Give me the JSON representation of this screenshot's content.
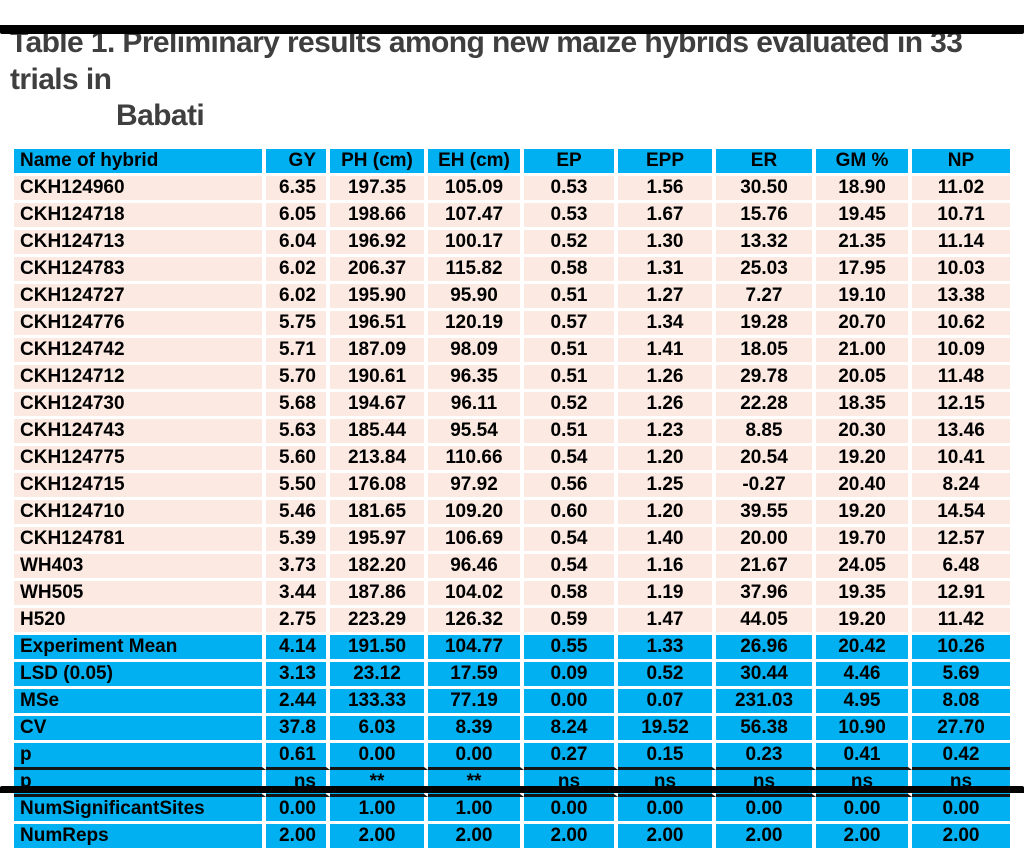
{
  "page": {
    "title_line1": "Table 1. Preliminary results among new maize hybrids evaluated in 33 trials in",
    "title_line2": "Babati"
  },
  "colors": {
    "header_bg": "#00b0f0",
    "data_row_bg": "#fbe9e2",
    "title_text": "#3f3f3f",
    "cell_text": "#000000",
    "grid_lines": "#ffffff",
    "dark_divider": "#151515"
  },
  "table": {
    "columns": [
      "Name of hybrid",
      "GY",
      "PH (cm)",
      "EH (cm)",
      "EP",
      "EPP",
      "ER",
      "GM %",
      "NP"
    ],
    "hybrid_rows": [
      [
        "CKH124960",
        "6.35",
        "197.35",
        "105.09",
        "0.53",
        "1.56",
        "30.50",
        "18.90",
        "11.02"
      ],
      [
        "CKH124718",
        "6.05",
        "198.66",
        "107.47",
        "0.53",
        "1.67",
        "15.76",
        "19.45",
        "10.71"
      ],
      [
        "CKH124713",
        "6.04",
        "196.92",
        "100.17",
        "0.52",
        "1.30",
        "13.32",
        "21.35",
        "11.14"
      ],
      [
        "CKH124783",
        "6.02",
        "206.37",
        "115.82",
        "0.58",
        "1.31",
        "25.03",
        "17.95",
        "10.03"
      ],
      [
        "CKH124727",
        "6.02",
        "195.90",
        "95.90",
        "0.51",
        "1.27",
        "7.27",
        "19.10",
        "13.38"
      ],
      [
        "CKH124776",
        "5.75",
        "196.51",
        "120.19",
        "0.57",
        "1.34",
        "19.28",
        "20.70",
        "10.62"
      ],
      [
        "CKH124742",
        "5.71",
        "187.09",
        "98.09",
        "0.51",
        "1.41",
        "18.05",
        "21.00",
        "10.09"
      ],
      [
        "CKH124712",
        "5.70",
        "190.61",
        "96.35",
        "0.51",
        "1.26",
        "29.78",
        "20.05",
        "11.48"
      ],
      [
        "CKH124730",
        "5.68",
        "194.67",
        "96.11",
        "0.52",
        "1.26",
        "22.28",
        "18.35",
        "12.15"
      ],
      [
        "CKH124743",
        "5.63",
        "185.44",
        "95.54",
        "0.51",
        "1.23",
        "8.85",
        "20.30",
        "13.46"
      ],
      [
        "CKH124775",
        "5.60",
        "213.84",
        "110.66",
        "0.54",
        "1.20",
        "20.54",
        "19.20",
        "10.41"
      ],
      [
        "CKH124715",
        "5.50",
        "176.08",
        "97.92",
        "0.56",
        "1.25",
        "-0.27",
        "20.40",
        "8.24"
      ],
      [
        "CKH124710",
        "5.46",
        "181.65",
        "109.20",
        "0.60",
        "1.20",
        "39.55",
        "19.20",
        "14.54"
      ],
      [
        "CKH124781",
        "5.39",
        "195.97",
        "106.69",
        "0.54",
        "1.40",
        "20.00",
        "19.70",
        "12.57"
      ],
      [
        "WH403",
        "3.73",
        "182.20",
        "96.46",
        "0.54",
        "1.16",
        "21.67",
        "24.05",
        "6.48"
      ],
      [
        "WH505",
        "3.44",
        "187.86",
        "104.02",
        "0.58",
        "1.19",
        "37.96",
        "19.35",
        "12.91"
      ],
      [
        "H520",
        "2.75",
        "223.29",
        "126.32",
        "0.59",
        "1.47",
        "44.05",
        "19.20",
        "11.42"
      ]
    ],
    "summary_rows": [
      [
        "Experiment Mean",
        "4.14",
        "191.50",
        "104.77",
        "0.55",
        "1.33",
        "26.96",
        "20.42",
        "10.26"
      ],
      [
        "LSD (0.05)",
        "3.13",
        "23.12",
        "17.59",
        "0.09",
        "0.52",
        "30.44",
        "4.46",
        "5.69"
      ],
      [
        "MSe",
        "2.44",
        "133.33",
        "77.19",
        "0.00",
        "0.07",
        "231.03",
        "4.95",
        "8.08"
      ],
      [
        "CV",
        "37.8",
        "6.03",
        "8.39",
        "8.24",
        "19.52",
        "56.38",
        "10.90",
        "27.70"
      ],
      [
        "p",
        "0.61",
        "0.00",
        "0.00",
        "0.27",
        "0.15",
        "0.23",
        "0.41",
        "0.42"
      ],
      [
        "p",
        "ns",
        "**",
        "**",
        "ns",
        "ns",
        "ns",
        "ns",
        "ns"
      ],
      [
        "NumSignificantSites",
        "0.00",
        "1.00",
        "1.00",
        "0.00",
        "0.00",
        "0.00",
        "0.00",
        "0.00"
      ],
      [
        "NumReps",
        "2.00",
        "2.00",
        "2.00",
        "2.00",
        "2.00",
        "2.00",
        "2.00",
        "2.00"
      ]
    ]
  }
}
